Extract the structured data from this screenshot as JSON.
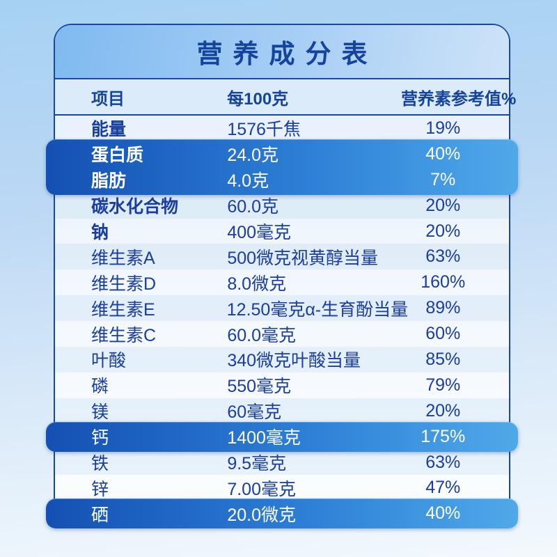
{
  "page_title": "营养成分表",
  "table": {
    "headers": [
      "项目",
      "每100克",
      "营养素参考值%"
    ],
    "rows": [
      {
        "item": "能量",
        "amount": "1576千焦",
        "nrv": "19%",
        "bold": true,
        "highlight": false,
        "group": 0
      },
      {
        "item": "蛋白质",
        "amount": "24.0克",
        "nrv": "40%",
        "bold": true,
        "highlight": true,
        "group": 1
      },
      {
        "item": "脂肪",
        "amount": "4.0克",
        "nrv": "7%",
        "bold": true,
        "highlight": true,
        "group": 1
      },
      {
        "item": "碳水化合物",
        "amount": "60.0克",
        "nrv": "20%",
        "bold": true,
        "highlight": false,
        "group": 0
      },
      {
        "item": "钠",
        "amount": "400毫克",
        "nrv": "20%",
        "bold": true,
        "highlight": false,
        "group": 0
      },
      {
        "item": "维生素A",
        "amount": "500微克视黄醇当量",
        "nrv": "63%",
        "bold": false,
        "highlight": false,
        "group": 0
      },
      {
        "item": "维生素D",
        "amount": "8.0微克",
        "nrv": "160%",
        "bold": false,
        "highlight": false,
        "group": 0
      },
      {
        "item": "维生素E",
        "amount": "12.50毫克α-生育酚当量",
        "nrv": "89%",
        "bold": false,
        "highlight": false,
        "group": 0
      },
      {
        "item": "维生素C",
        "amount": "60.0毫克",
        "nrv": "60%",
        "bold": false,
        "highlight": false,
        "group": 0
      },
      {
        "item": "叶酸",
        "amount": "340微克叶酸当量",
        "nrv": "85%",
        "bold": false,
        "highlight": false,
        "group": 0
      },
      {
        "item": "磷",
        "amount": "550毫克",
        "nrv": "79%",
        "bold": false,
        "highlight": false,
        "group": 0
      },
      {
        "item": "镁",
        "amount": "60毫克",
        "nrv": "20%",
        "bold": false,
        "highlight": false,
        "group": 0
      },
      {
        "item": "钙",
        "amount": "1400毫克",
        "nrv": "175%",
        "bold": false,
        "highlight": true,
        "group": 2
      },
      {
        "item": "铁",
        "amount": "9.5毫克",
        "nrv": "63%",
        "bold": false,
        "highlight": false,
        "group": 0
      },
      {
        "item": "锌",
        "amount": "7.00毫克",
        "nrv": "47%",
        "bold": false,
        "highlight": false,
        "group": 0
      },
      {
        "item": "硒",
        "amount": "20.0微克",
        "nrv": "40%",
        "bold": false,
        "highlight": true,
        "group": 3
      }
    ]
  },
  "colors": {
    "page_bg_top": "#a6d1f3",
    "page_bg_bottom": "#f3f9fd",
    "card_border": "#17479f",
    "card_bg_top": "#e6f0fb",
    "card_bg_bottom": "#fcfeff",
    "title_band_left": "#7fbaf0",
    "title_band_right": "#cde3f8",
    "header_bg": "#dcebfa",
    "text_primary": "#1a3da0",
    "title_text": "#14449c",
    "highlight_gradient_left": "#1450b2",
    "highlight_gradient_right": "#4fa9e9",
    "highlight_text": "#ffffff"
  }
}
